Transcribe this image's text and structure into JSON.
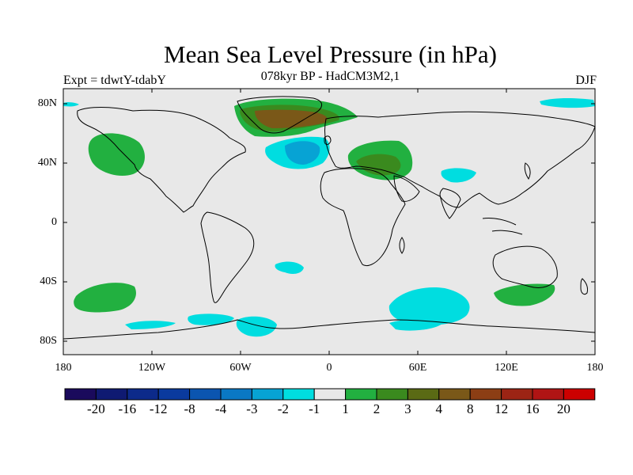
{
  "title": "Mean Sea Level Pressure (in hPa)",
  "subtitle": "078kyr BP - HadCM3M2,1",
  "left_title": "Expt = tdwtY-tdabY",
  "right_title": "DJF",
  "y_axis": {
    "ticks": [
      "80N",
      "40N",
      "0",
      "40S",
      "80S"
    ],
    "values": [
      80,
      40,
      0,
      -40,
      -80
    ]
  },
  "x_axis": {
    "ticks": [
      "180",
      "120W",
      "60W",
      "0",
      "60E",
      "120E",
      "180"
    ],
    "values": [
      -180,
      -120,
      -60,
      0,
      60,
      120,
      180
    ]
  },
  "colorbar": {
    "colors": [
      "#1a0a5c",
      "#0f1a72",
      "#0c2a8a",
      "#0a3a9e",
      "#0b55b0",
      "#0a78c4",
      "#07a3d4",
      "#00dde0",
      "#e8e8e8",
      "#22b040",
      "#3a8a1e",
      "#5a6a14",
      "#7a5818",
      "#8c3e14",
      "#9c2414",
      "#b01414",
      "#cc0000"
    ],
    "labels": [
      "-20",
      "-16",
      "-12",
      "-8",
      "-4",
      "-3",
      "-2",
      "-1",
      "1",
      "2",
      "3",
      "4",
      "8",
      "12",
      "16",
      "20"
    ]
  },
  "colors": {
    "ocean_background": "#e8e8e8",
    "cyan_level": "#00dde0",
    "blue_level": "#07a3d4",
    "green_level": "#22b040",
    "darkgreen_level": "#3a8a1e",
    "brown_level": "#7a5818"
  }
}
